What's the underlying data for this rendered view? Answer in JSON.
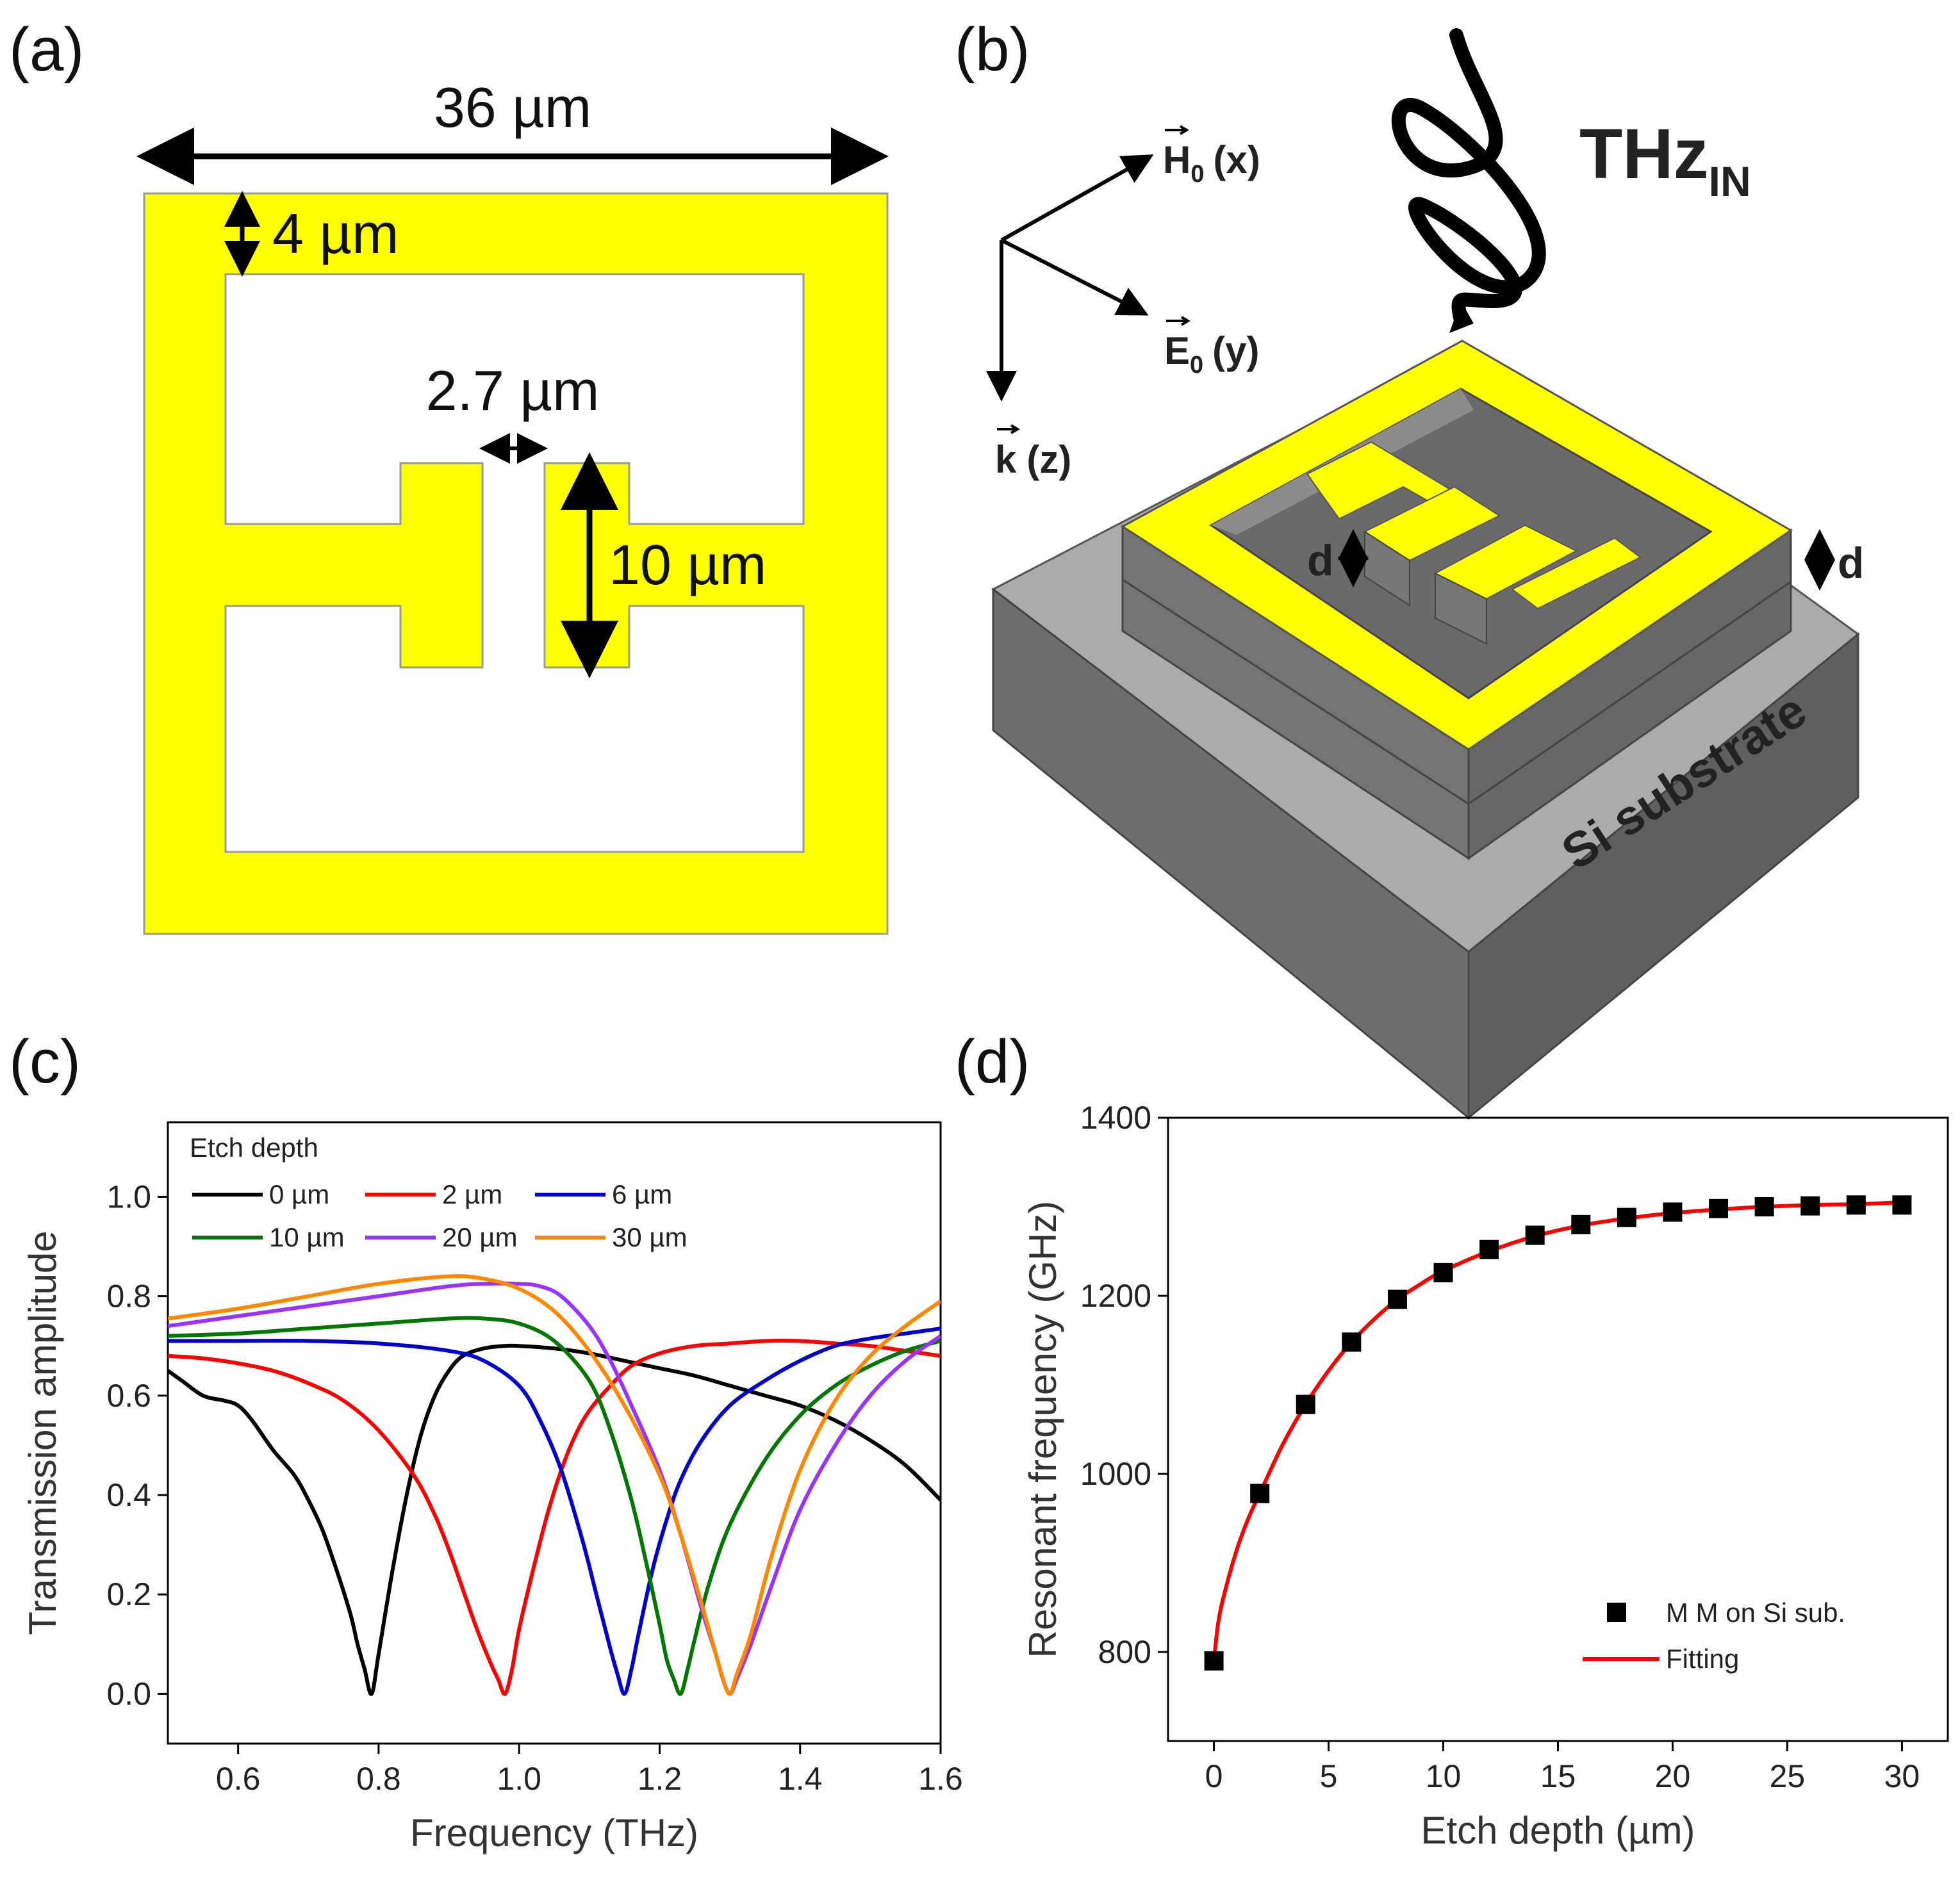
{
  "panels": {
    "a": {
      "label": "(a)",
      "width_label": "36 µm",
      "thickness_label": "4 µm",
      "gap_label": "2.7 µm",
      "pad_label": "10 µm",
      "colors": {
        "metal": "#FFFF00",
        "outline": "#999999"
      }
    },
    "b": {
      "label": "(b)",
      "h_label": "H⃗₀ (x)",
      "h_main": "H",
      "h_sub": "0",
      "h_axis": "(x)",
      "e_main": "E",
      "e_sub": "0",
      "e_axis": "(y)",
      "k_main": "k",
      "k_axis": "(z)",
      "thz_main": "THz",
      "thz_sub": "IN",
      "d_label": "d",
      "substrate_label": "Si substrate",
      "colors": {
        "metal": "#FFFF00",
        "top": "#9a9a9a",
        "side_left": "#6e6e6e",
        "side_right": "#5f5f5f"
      }
    },
    "c": {
      "label": "(c)"
    },
    "d": {
      "label": "(d)"
    }
  },
  "chart_data": [
    {
      "id": "c",
      "type": "line",
      "title": "",
      "xlabel": "Frequency (THz)",
      "ylabel": "Transmission amplitude",
      "xlim": [
        0.5,
        1.6
      ],
      "ylim": [
        -0.1,
        1.15
      ],
      "xticks": [
        0.6,
        0.8,
        1.0,
        1.2,
        1.4,
        1.6
      ],
      "xtick_labels": [
        "0.6",
        "0.8",
        "1.0",
        "1.2",
        "1.4",
        "1.6"
      ],
      "yticks": [
        0.0,
        0.2,
        0.4,
        0.6,
        0.8,
        1.0
      ],
      "ytick_labels": [
        "0.0",
        "0.2",
        "0.4",
        "0.6",
        "0.8",
        "1.0"
      ],
      "legend_title": "Etch depth",
      "legend_position": "top-left",
      "series": [
        {
          "name": "0 µm",
          "color": "#000000",
          "x": [
            0.5,
            0.52,
            0.55,
            0.58,
            0.6,
            0.62,
            0.65,
            0.68,
            0.7,
            0.72,
            0.74,
            0.76,
            0.77,
            0.78,
            0.79,
            0.8,
            0.82,
            0.84,
            0.86,
            0.88,
            0.9,
            0.92,
            0.95,
            0.98,
            1.0,
            1.05,
            1.1,
            1.15,
            1.2,
            1.25,
            1.3,
            1.35,
            1.4,
            1.45,
            1.5,
            1.55,
            1.6
          ],
          "y": [
            0.65,
            0.63,
            0.6,
            0.59,
            0.58,
            0.55,
            0.49,
            0.44,
            0.39,
            0.33,
            0.25,
            0.16,
            0.1,
            0.05,
            0.0,
            0.08,
            0.25,
            0.4,
            0.52,
            0.6,
            0.65,
            0.68,
            0.695,
            0.7,
            0.7,
            0.695,
            0.685,
            0.67,
            0.655,
            0.64,
            0.62,
            0.6,
            0.58,
            0.55,
            0.51,
            0.46,
            0.39
          ]
        },
        {
          "name": "2 µm",
          "color": "#ff0000",
          "x": [
            0.5,
            0.55,
            0.6,
            0.65,
            0.7,
            0.75,
            0.8,
            0.85,
            0.88,
            0.9,
            0.92,
            0.94,
            0.96,
            0.97,
            0.98,
            0.99,
            1.0,
            1.02,
            1.04,
            1.06,
            1.08,
            1.1,
            1.13,
            1.16,
            1.2,
            1.25,
            1.3,
            1.35,
            1.4,
            1.45,
            1.5,
            1.55,
            1.6
          ],
          "y": [
            0.68,
            0.675,
            0.665,
            0.65,
            0.625,
            0.59,
            0.53,
            0.44,
            0.36,
            0.29,
            0.21,
            0.13,
            0.06,
            0.03,
            0.0,
            0.05,
            0.13,
            0.25,
            0.36,
            0.45,
            0.52,
            0.57,
            0.62,
            0.66,
            0.685,
            0.7,
            0.705,
            0.71,
            0.71,
            0.705,
            0.7,
            0.69,
            0.68
          ]
        },
        {
          "name": "6 µm",
          "color": "#0000cc",
          "x": [
            0.5,
            0.6,
            0.7,
            0.8,
            0.9,
            0.95,
            1.0,
            1.03,
            1.06,
            1.09,
            1.11,
            1.13,
            1.14,
            1.15,
            1.16,
            1.17,
            1.19,
            1.21,
            1.23,
            1.26,
            1.3,
            1.35,
            1.4,
            1.45,
            1.5,
            1.55,
            1.6
          ],
          "y": [
            0.71,
            0.71,
            0.71,
            0.705,
            0.69,
            0.67,
            0.62,
            0.55,
            0.45,
            0.31,
            0.2,
            0.09,
            0.04,
            0.0,
            0.05,
            0.12,
            0.25,
            0.35,
            0.43,
            0.51,
            0.58,
            0.63,
            0.67,
            0.7,
            0.715,
            0.725,
            0.735
          ]
        },
        {
          "name": "10 µm",
          "color": "#007700",
          "x": [
            0.5,
            0.6,
            0.7,
            0.8,
            0.9,
            0.95,
            1.0,
            1.05,
            1.1,
            1.13,
            1.16,
            1.18,
            1.2,
            1.21,
            1.22,
            1.23,
            1.24,
            1.25,
            1.27,
            1.3,
            1.35,
            1.4,
            1.45,
            1.5,
            1.55,
            1.6
          ],
          "y": [
            0.72,
            0.725,
            0.735,
            0.745,
            0.755,
            0.755,
            0.745,
            0.71,
            0.63,
            0.53,
            0.39,
            0.27,
            0.14,
            0.07,
            0.03,
            0.0,
            0.05,
            0.11,
            0.22,
            0.34,
            0.47,
            0.56,
            0.62,
            0.66,
            0.69,
            0.71
          ]
        },
        {
          "name": "20 µm",
          "color": "#9933ff",
          "x": [
            0.5,
            0.6,
            0.7,
            0.8,
            0.9,
            0.95,
            1.0,
            1.03,
            1.06,
            1.1,
            1.13,
            1.16,
            1.2,
            1.23,
            1.26,
            1.28,
            1.29,
            1.3,
            1.31,
            1.33,
            1.36,
            1.4,
            1.45,
            1.5,
            1.55,
            1.6
          ],
          "y": [
            0.74,
            0.76,
            0.78,
            0.8,
            0.82,
            0.825,
            0.825,
            0.82,
            0.8,
            0.74,
            0.67,
            0.58,
            0.45,
            0.32,
            0.17,
            0.08,
            0.03,
            0.0,
            0.03,
            0.1,
            0.22,
            0.37,
            0.5,
            0.6,
            0.67,
            0.72
          ]
        },
        {
          "name": "30 µm",
          "color": "#ff8800",
          "x": [
            0.5,
            0.6,
            0.7,
            0.8,
            0.9,
            0.95,
            1.0,
            1.05,
            1.1,
            1.15,
            1.2,
            1.23,
            1.26,
            1.28,
            1.29,
            1.3,
            1.31,
            1.33,
            1.36,
            1.4,
            1.45,
            1.5,
            1.55,
            1.6
          ],
          "y": [
            0.755,
            0.775,
            0.8,
            0.825,
            0.84,
            0.835,
            0.815,
            0.77,
            0.69,
            0.58,
            0.44,
            0.32,
            0.18,
            0.08,
            0.03,
            0.0,
            0.04,
            0.12,
            0.28,
            0.45,
            0.59,
            0.68,
            0.74,
            0.79
          ]
        }
      ]
    },
    {
      "id": "d",
      "type": "scatter",
      "title": "",
      "xlabel": "Etch depth (µm)",
      "ylabel": "Resonant frequency (GHz)",
      "xlim": [
        -2,
        32
      ],
      "ylim": [
        700,
        1400
      ],
      "xticks": [
        0,
        5,
        10,
        15,
        20,
        25,
        30
      ],
      "xtick_labels": [
        "0",
        "5",
        "10",
        "15",
        "20",
        "25",
        "30"
      ],
      "yticks": [
        800,
        1000,
        1200,
        1400
      ],
      "ytick_labels": [
        "800",
        "1000",
        "1200",
        "1400"
      ],
      "legend_position": "bottom-right",
      "series": [
        {
          "name": "M M  on Si sub.",
          "kind": "scatter",
          "color": "#000000",
          "x": [
            0,
            2,
            4,
            6,
            8,
            10,
            12,
            14,
            16,
            18,
            20,
            22,
            24,
            26,
            28,
            30
          ],
          "y": [
            790,
            978,
            1078,
            1148,
            1196,
            1226,
            1252,
            1268,
            1280,
            1288,
            1294,
            1298,
            1300,
            1301,
            1302,
            1302
          ]
        },
        {
          "name": "Fitting",
          "kind": "line",
          "color": "#ff0000",
          "x": [
            0,
            0.2,
            0.5,
            1,
            1.5,
            2,
            3,
            4,
            5,
            6,
            7,
            8,
            9,
            10,
            12,
            14,
            16,
            18,
            20,
            22,
            24,
            26,
            28,
            30
          ],
          "y": [
            790,
            835,
            870,
            915,
            950,
            978,
            1033,
            1078,
            1116,
            1148,
            1174,
            1196,
            1213,
            1228,
            1250,
            1267,
            1279,
            1287,
            1293,
            1297,
            1300,
            1302,
            1303,
            1305
          ]
        }
      ]
    }
  ]
}
